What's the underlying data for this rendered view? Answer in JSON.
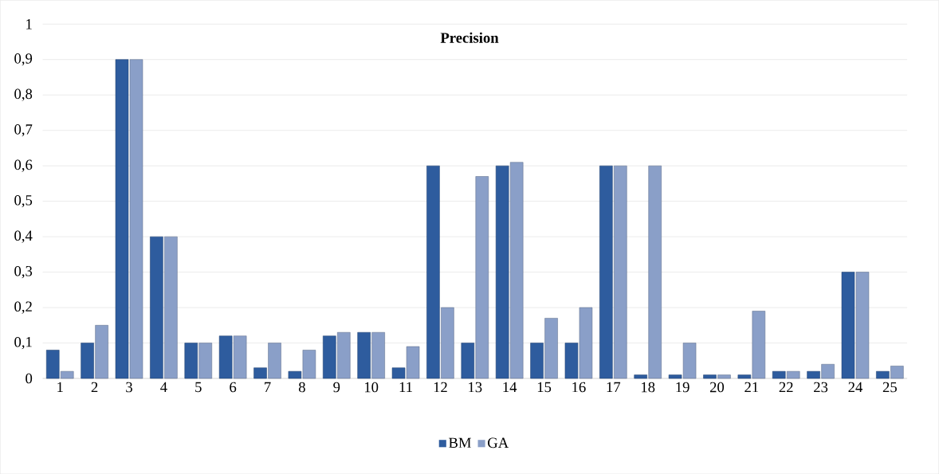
{
  "chart_data": {
    "type": "bar",
    "title": "Precision",
    "categories": [
      "1",
      "2",
      "3",
      "4",
      "5",
      "6",
      "7",
      "8",
      "9",
      "10",
      "11",
      "12",
      "13",
      "14",
      "15",
      "16",
      "17",
      "18",
      "19",
      "20",
      "21",
      "22",
      "23",
      "24",
      "25"
    ],
    "series": [
      {
        "name": "BM",
        "color": "#2e5c9e",
        "values": [
          0.08,
          0.1,
          0.9,
          0.4,
          0.1,
          0.12,
          0.03,
          0.02,
          0.12,
          0.13,
          0.03,
          0.6,
          0.1,
          0.6,
          0.1,
          0.1,
          0.6,
          0.01,
          0.01,
          0.01,
          0.01,
          0.02,
          0.02,
          0.3,
          0.02
        ]
      },
      {
        "name": "GA",
        "color": "#8a9fc8",
        "values": [
          0.02,
          0.15,
          0.9,
          0.4,
          0.1,
          0.12,
          0.1,
          0.08,
          0.13,
          0.13,
          0.09,
          0.2,
          0.57,
          0.61,
          0.17,
          0.2,
          0.6,
          0.6,
          0.1,
          0.01,
          0.19,
          0.02,
          0.04,
          0.3,
          0.035
        ]
      }
    ],
    "ylim": [
      0,
      1
    ],
    "yticks": [
      0,
      {
        "value": 0.1,
        "label": "0,1"
      },
      {
        "value": 0.2,
        "label": "0,2"
      },
      {
        "value": 0.3,
        "label": "0,3"
      },
      {
        "value": 0.4,
        "label": "0,4"
      },
      {
        "value": 0.5,
        "label": "0,5"
      },
      {
        "value": 0.6,
        "label": "0,6"
      },
      {
        "value": 0.7,
        "label": "0,7"
      },
      {
        "value": 0.8,
        "label": "0,8"
      },
      {
        "value": 0.9,
        "label": "0,9"
      },
      1
    ],
    "grid": "y",
    "legend": "bottom"
  }
}
